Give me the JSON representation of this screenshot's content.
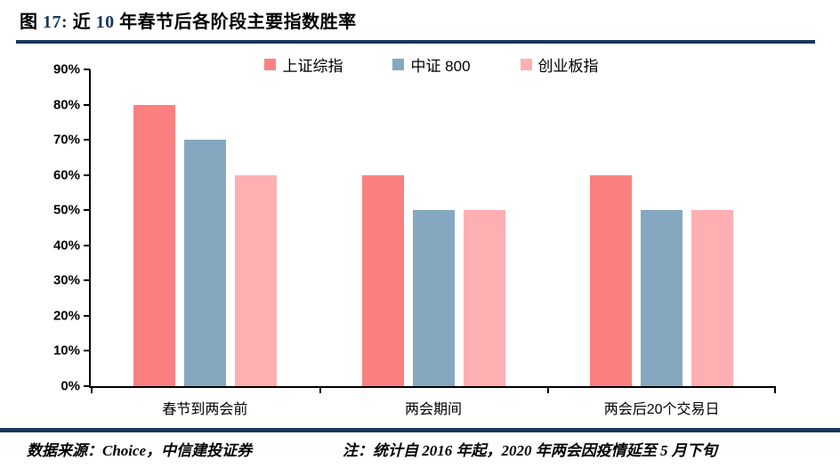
{
  "figure": {
    "accent_color": "#17375E",
    "title_full": "图 17: 近 10 年春节后各阶段主要指数胜率",
    "title_parts": [
      {
        "text": "图 ",
        "accent": false
      },
      {
        "text": "17:",
        "accent": true
      },
      {
        "text": " 近 ",
        "accent": false
      },
      {
        "text": "10",
        "accent": true
      },
      {
        "text": " 年春节后各阶段主要指数胜率",
        "accent": false
      }
    ]
  },
  "chart_data": {
    "type": "bar",
    "title": "近 10 年春节后各阶段主要指数胜率",
    "categories": [
      "春节到两会前",
      "两会期间",
      "两会后20个交易日"
    ],
    "series": [
      {
        "name": "上证综指",
        "color": "#FA8080",
        "values": [
          80,
          60,
          60
        ]
      },
      {
        "name": "中证 800",
        "color": "#84A8BF",
        "values": [
          70,
          50,
          50
        ]
      },
      {
        "name": "创业板指",
        "color": "#FFAFB2",
        "values": [
          60,
          50,
          50
        ]
      }
    ],
    "xlabel": "",
    "ylabel": "",
    "ylim": [
      0,
      90
    ],
    "ytick_step": 10,
    "ytick_suffix": "%",
    "legend_position": "top",
    "grid": false,
    "axis_color": "#000000"
  },
  "footer": {
    "source": "数据来源：Choice，中信建投证券",
    "note": "注：统计自 2016 年起，2020 年两会因疫情延至 5 月下旬"
  }
}
